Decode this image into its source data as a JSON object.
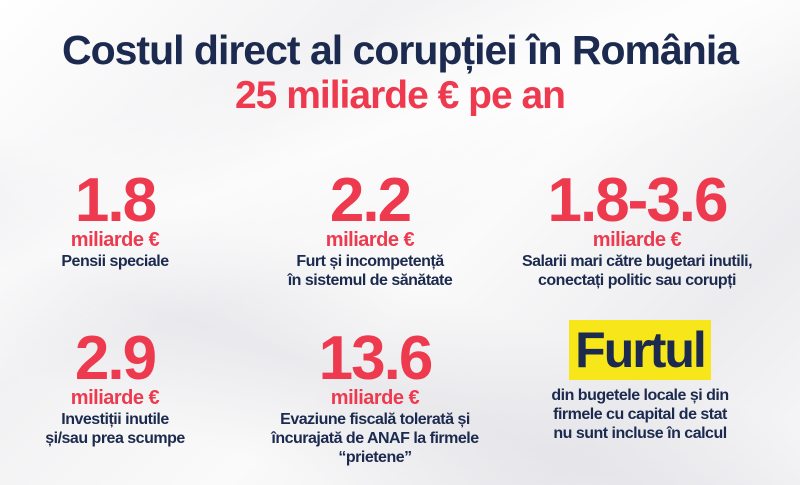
{
  "header": {
    "title": "Costul direct al corupției în România",
    "subtitle": "25 miliarde € pe an"
  },
  "items": [
    {
      "value": "1.8",
      "unit": "miliarde €",
      "desc1": "Pensii speciale",
      "desc2": ""
    },
    {
      "value": "2.2",
      "unit": "miliarde €",
      "desc1": "Furt și incompetență",
      "desc2": "în sistemul de sănătate"
    },
    {
      "value": "1.8-3.6",
      "unit": "miliarde €",
      "desc1": "Salarii mari către bugetari inutili,",
      "desc2": "conectați politic sau corupți"
    },
    {
      "value": "2.9",
      "unit": "miliarde €",
      "desc1": "Investiții inutile",
      "desc2": "și/sau prea scumpe"
    },
    {
      "value": "13.6",
      "unit": "miliarde €",
      "desc1": "Evaziune fiscală tolerată și",
      "desc2": "încurajată de ANAF la firmele",
      "desc3": "“prietene”"
    }
  ],
  "note": {
    "highlight": "Furtul",
    "line1": "din bugetele locale și din",
    "line2": "firmele cu capital de stat",
    "line3": "nu sunt incluse în calcul"
  },
  "colors": {
    "navy": "#1b2a4e",
    "red": "#ee3a4f",
    "yellow": "#f7e619"
  }
}
